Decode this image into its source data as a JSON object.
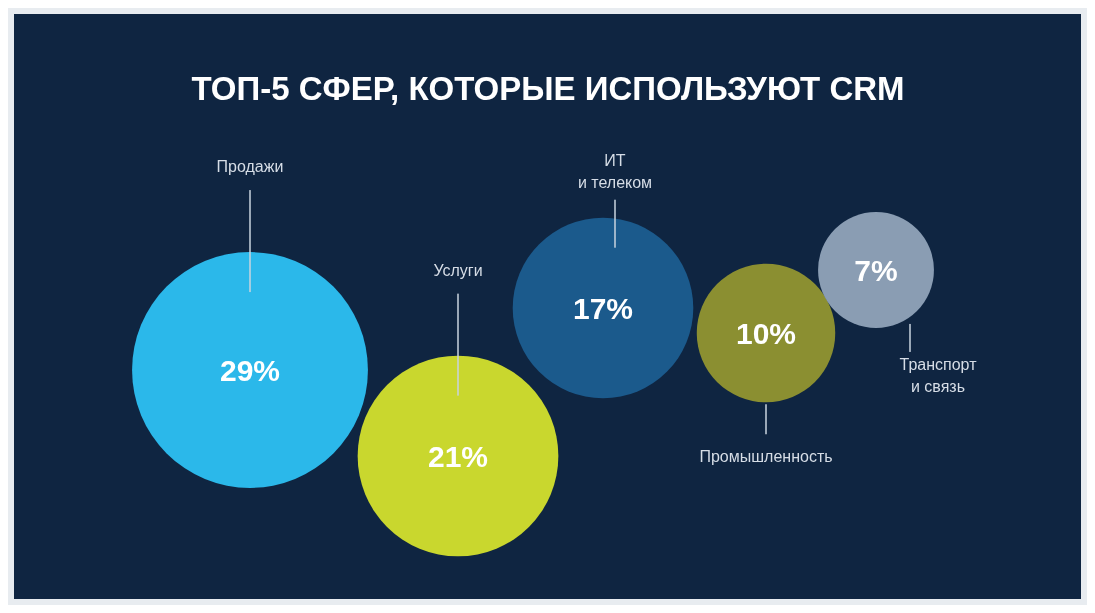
{
  "chart_data": {
    "type": "other",
    "title": "ТОП-5 СФЕР, КОТОРЫЕ ИСПОЛЬЗУЮТ CRM",
    "categories": [
      "Продажи",
      "Услуги",
      "ИТ\nи телеком",
      "Промышленность",
      "Транспорт\nи связь"
    ],
    "values": [
      29,
      21,
      17,
      10,
      7
    ],
    "colors": [
      "#2bb8ea",
      "#c9d72e",
      "#1b5a8c",
      "#8b8f31",
      "#8a9db3"
    ],
    "value_labels": [
      "29%",
      "21%",
      "17%",
      "10%",
      "7%"
    ]
  }
}
